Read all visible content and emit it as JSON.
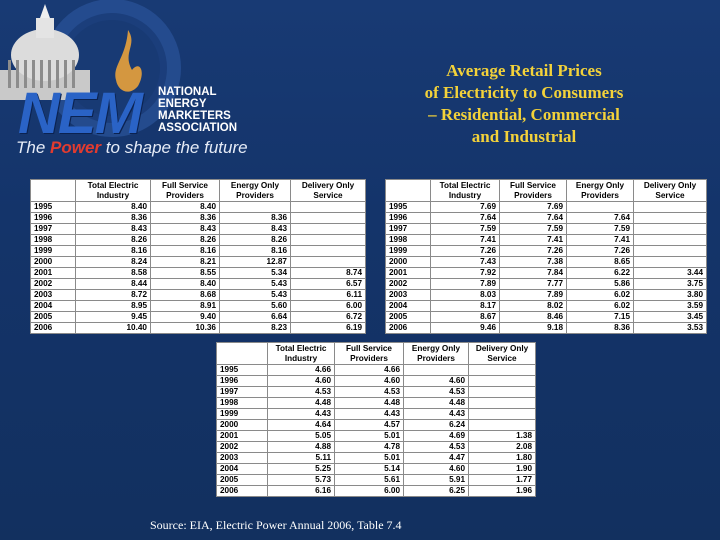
{
  "logo": {
    "abbr": "NEM",
    "name_lines": [
      "NATIONAL",
      "ENERGY",
      "MARKETERS",
      "ASSOCIATION"
    ],
    "tagline_prefix": "The",
    "tagline_emphasis": "Power",
    "tagline_suffix": "to shape the future",
    "ring_text": "NATIONAL ENERGY MARKETERS ASSOCIATION"
  },
  "title_lines": [
    "Average Retail Prices",
    "of Electricity to Consumers",
    "– Residential, Commercial",
    "and Industrial"
  ],
  "source": "Source: EIA, Electric Power Annual 2006, Table 7.4",
  "colors": {
    "background": "#14346a",
    "title": "#f3d23a",
    "brand_blue": "#2a63c6",
    "brand_red": "#e23b2f"
  },
  "columns": [
    [
      "Total Electric",
      "Industry"
    ],
    [
      "Full Service",
      "Providers"
    ],
    [
      "Energy Only",
      "Providers"
    ],
    [
      "Delivery Only",
      "Service"
    ]
  ],
  "tables": [
    {
      "rows": [
        [
          "1995",
          "8.40",
          "8.40",
          "",
          ""
        ],
        [
          "1996",
          "8.36",
          "8.36",
          "8.36",
          ""
        ],
        [
          "1997",
          "8.43",
          "8.43",
          "8.43",
          ""
        ],
        [
          "1998",
          "8.26",
          "8.26",
          "8.26",
          ""
        ],
        [
          "1999",
          "8.16",
          "8.16",
          "8.16",
          ""
        ],
        [
          "2000",
          "8.24",
          "8.21",
          "12.87",
          ""
        ],
        [
          "2001",
          "8.58",
          "8.55",
          "5.34",
          "8.74"
        ],
        [
          "2002",
          "8.44",
          "8.40",
          "5.43",
          "6.57"
        ],
        [
          "2003",
          "8.72",
          "8.68",
          "5.43",
          "6.11"
        ],
        [
          "2004",
          "8.95",
          "8.91",
          "5.60",
          "6.00"
        ],
        [
          "2005",
          "9.45",
          "9.40",
          "6.64",
          "6.72"
        ],
        [
          "2006",
          "10.40",
          "10.36",
          "8.23",
          "6.19"
        ]
      ]
    },
    {
      "rows": [
        [
          "1995",
          "7.69",
          "7.69",
          "",
          ""
        ],
        [
          "1996",
          "7.64",
          "7.64",
          "7.64",
          ""
        ],
        [
          "1997",
          "7.59",
          "7.59",
          "7.59",
          ""
        ],
        [
          "1998",
          "7.41",
          "7.41",
          "7.41",
          ""
        ],
        [
          "1999",
          "7.26",
          "7.26",
          "7.26",
          ""
        ],
        [
          "2000",
          "7.43",
          "7.38",
          "8.65",
          ""
        ],
        [
          "2001",
          "7.92",
          "7.84",
          "6.22",
          "3.44"
        ],
        [
          "2002",
          "7.89",
          "7.77",
          "5.86",
          "3.75"
        ],
        [
          "2003",
          "8.03",
          "7.89",
          "6.02",
          "3.80"
        ],
        [
          "2004",
          "8.17",
          "8.02",
          "6.02",
          "3.59"
        ],
        [
          "2005",
          "8.67",
          "8.46",
          "7.15",
          "3.45"
        ],
        [
          "2006",
          "9.46",
          "9.18",
          "8.36",
          "3.53"
        ]
      ]
    },
    {
      "rows": [
        [
          "1995",
          "4.66",
          "4.66",
          "",
          ""
        ],
        [
          "1996",
          "4.60",
          "4.60",
          "4.60",
          ""
        ],
        [
          "1997",
          "4.53",
          "4.53",
          "4.53",
          ""
        ],
        [
          "1998",
          "4.48",
          "4.48",
          "4.48",
          ""
        ],
        [
          "1999",
          "4.43",
          "4.43",
          "4.43",
          ""
        ],
        [
          "2000",
          "4.64",
          "4.57",
          "6.24",
          ""
        ],
        [
          "2001",
          "5.05",
          "5.01",
          "4.69",
          "1.38"
        ],
        [
          "2002",
          "4.88",
          "4.78",
          "4.53",
          "2.08"
        ],
        [
          "2003",
          "5.11",
          "5.01",
          "4.47",
          "1.80"
        ],
        [
          "2004",
          "5.25",
          "5.14",
          "4.60",
          "1.90"
        ],
        [
          "2005",
          "5.73",
          "5.61",
          "5.91",
          "1.77"
        ],
        [
          "2006",
          "6.16",
          "6.00",
          "6.25",
          "1.96"
        ]
      ]
    }
  ]
}
